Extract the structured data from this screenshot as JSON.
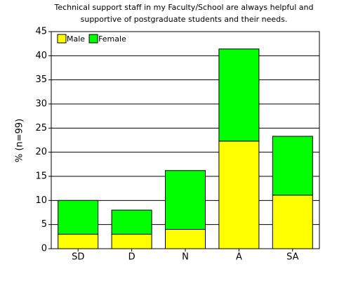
{
  "chart_data": {
    "type": "stacked-bar",
    "title": [
      "Technical support staff in my Faculty/School are always helpful and",
      "supportive of postgraduate students and their needs."
    ],
    "y_label": "% (n=99)",
    "categories": [
      "SD",
      "D",
      "N",
      "A",
      "SA"
    ],
    "series": [
      {
        "name": "Male",
        "color": "#ffff00",
        "values": [
          3,
          3,
          4,
          22.3,
          11.1
        ]
      },
      {
        "name": "Female",
        "color": "#00ff00",
        "values": [
          7,
          5,
          12.2,
          19.1,
          12.2
        ]
      }
    ],
    "ylim": [
      0,
      45
    ],
    "yticks": [
      0,
      5,
      10,
      15,
      20,
      25,
      30,
      35,
      40,
      45
    ],
    "grid": true,
    "legend": "top-left"
  }
}
